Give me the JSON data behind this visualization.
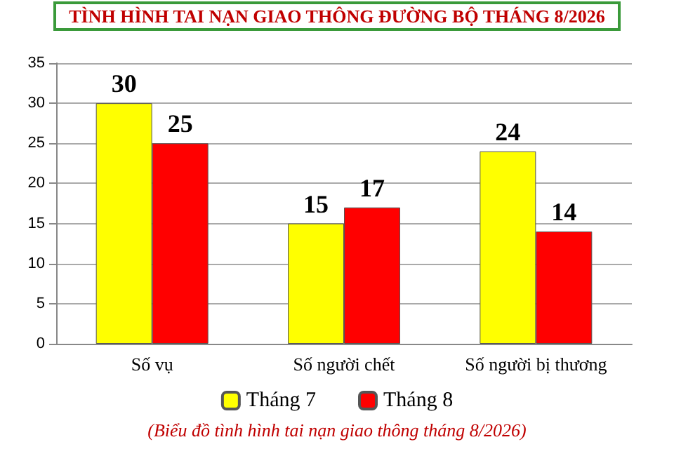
{
  "chart_data": {
    "type": "bar",
    "title": "TÌNH HÌNH TAI NẠN GIAO THÔNG ĐƯỜNG BỘ THÁNG 8/2026",
    "categories": [
      "Số vụ",
      "Số người chết",
      "Số người bị thương"
    ],
    "series": [
      {
        "name": "Tháng 7",
        "color": "#ffff00",
        "values": [
          30,
          15,
          24
        ]
      },
      {
        "name": "Tháng 8",
        "color": "#ff0000",
        "values": [
          25,
          17,
          14
        ]
      }
    ],
    "ylim": [
      0,
      35
    ],
    "yticks": [
      0,
      5,
      10,
      15,
      20,
      25,
      30,
      35
    ],
    "grid": "y",
    "legend": "bottom",
    "data_labels": true,
    "annotations": [
      "(Biểu đồ tình hình tai nạn giao thông tháng 8/2026)"
    ]
  }
}
